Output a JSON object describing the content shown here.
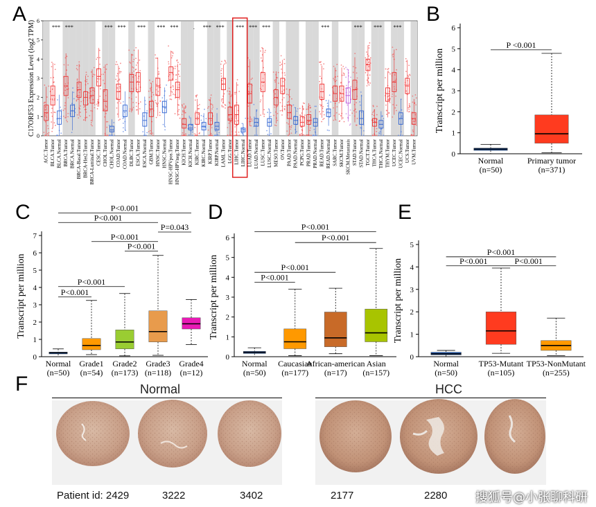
{
  "panel_letters": [
    "A",
    "B",
    "C",
    "D",
    "E",
    "F"
  ],
  "chart_data": [
    {
      "id": "A",
      "type": "box",
      "ylabel": "C17ORF53 Expression Level (log2 TPM)",
      "ylim": [
        0,
        6
      ],
      "yticks": [
        0,
        1,
        2,
        3,
        4,
        5,
        6
      ],
      "highlight": "LIHC",
      "categories": [
        {
          "name": "ACC.Tumor",
          "kind": "tumor",
          "med": 1.2,
          "q1": 0.8,
          "q3": 1.6,
          "sig": ""
        },
        {
          "name": "BLCA.Tumor",
          "kind": "tumor",
          "med": 2.1,
          "q1": 1.6,
          "q3": 2.6,
          "sig": "***"
        },
        {
          "name": "BLCA.Normal",
          "kind": "normal",
          "med": 0.9,
          "q1": 0.6,
          "q3": 1.3,
          "sig": ""
        },
        {
          "name": "BRCA.Tumor",
          "kind": "tumor",
          "med": 2.6,
          "q1": 2.1,
          "q3": 3.1,
          "sig": "***"
        },
        {
          "name": "BRCA.Normal",
          "kind": "normal",
          "med": 1.3,
          "q1": 1.0,
          "q3": 1.6,
          "sig": ""
        },
        {
          "name": "BRCA-Basal.Tumor",
          "kind": "tumor",
          "med": 2.4,
          "q1": 2.0,
          "q3": 2.8,
          "sig": ""
        },
        {
          "name": "BRCA-Her2.Tumor",
          "kind": "tumor",
          "med": 2.0,
          "q1": 1.6,
          "q3": 2.3,
          "sig": ""
        },
        {
          "name": "BRCA-Luminal.Tumor",
          "kind": "tumor",
          "med": 2.1,
          "q1": 1.7,
          "q3": 2.5,
          "sig": ""
        },
        {
          "name": "CESC.Tumor",
          "kind": "tumor",
          "med": 3.1,
          "q1": 2.6,
          "q3": 3.5,
          "sig": ""
        },
        {
          "name": "CHOL.Tumor",
          "kind": "tumor",
          "med": 1.8,
          "q1": 1.3,
          "q3": 2.4,
          "sig": "***"
        },
        {
          "name": "CHOL.Normal",
          "kind": "normal",
          "med": 0.3,
          "q1": 0.2,
          "q3": 0.5,
          "sig": ""
        },
        {
          "name": "COAD.Tumor",
          "kind": "tumor",
          "med": 2.3,
          "q1": 1.9,
          "q3": 2.7,
          "sig": "***"
        },
        {
          "name": "COAD.Normal",
          "kind": "normal",
          "med": 1.3,
          "q1": 1.0,
          "q3": 1.6,
          "sig": ""
        },
        {
          "name": "DLBC.Tumor",
          "kind": "tumor",
          "med": 2.8,
          "q1": 2.3,
          "q3": 3.2,
          "sig": ""
        },
        {
          "name": "ESCA.Tumor",
          "kind": "tumor",
          "med": 2.8,
          "q1": 2.3,
          "q3": 3.3,
          "sig": "***"
        },
        {
          "name": "ESCA.Normal",
          "kind": "normal",
          "med": 0.8,
          "q1": 0.5,
          "q3": 1.2,
          "sig": ""
        },
        {
          "name": "GBM.Tumor",
          "kind": "tumor",
          "med": 1.4,
          "q1": 1.0,
          "q3": 1.8,
          "sig": ""
        },
        {
          "name": "HNSC.Tumor",
          "kind": "tumor",
          "med": 2.6,
          "q1": 2.1,
          "q3": 3.0,
          "sig": "***"
        },
        {
          "name": "HNSC.Normal",
          "kind": "normal",
          "med": 1.5,
          "q1": 1.2,
          "q3": 1.8,
          "sig": ""
        },
        {
          "name": "HNSC-HPVpos.Tumor",
          "kind": "tumor",
          "med": 3.3,
          "q1": 2.9,
          "q3": 3.6,
          "sig": "***"
        },
        {
          "name": "HNSC-HPVneg.Tumor",
          "kind": "tumor",
          "med": 2.4,
          "q1": 2.0,
          "q3": 2.8,
          "sig": ""
        },
        {
          "name": "KICH.Tumor",
          "kind": "tumor",
          "med": 0.6,
          "q1": 0.4,
          "q3": 0.9,
          "sig": ""
        },
        {
          "name": "KICH.Normal",
          "kind": "normal",
          "med": 0.4,
          "q1": 0.3,
          "q3": 0.6,
          "sig": "."
        },
        {
          "name": "KIRC.Tumor",
          "kind": "tumor",
          "med": 0.9,
          "q1": 0.6,
          "q3": 1.2,
          "sig": ""
        },
        {
          "name": "KIRC.Normal",
          "kind": "normal",
          "med": 0.5,
          "q1": 0.3,
          "q3": 0.7,
          "sig": "***"
        },
        {
          "name": "KIRP.Tumor",
          "kind": "tumor",
          "med": 0.9,
          "q1": 0.6,
          "q3": 1.2,
          "sig": ""
        },
        {
          "name": "KIRP.Normal",
          "kind": "normal",
          "med": 0.5,
          "q1": 0.3,
          "q3": 0.7,
          "sig": "***"
        },
        {
          "name": "LAML.Tumor",
          "kind": "tumor",
          "med": 2.7,
          "q1": 2.4,
          "q3": 3.0,
          "sig": ""
        },
        {
          "name": "LGG.Tumor",
          "kind": "tumor",
          "med": 1.1,
          "q1": 0.8,
          "q3": 1.5,
          "sig": ""
        },
        {
          "name": "LIHC.Tumor",
          "kind": "tumor",
          "med": 1.1,
          "q1": 0.6,
          "q3": 1.6,
          "sig": "***"
        },
        {
          "name": "LIHC.Normal",
          "kind": "normal",
          "med": 0.3,
          "q1": 0.2,
          "q3": 0.4,
          "sig": ""
        },
        {
          "name": "LUAD.Tumor",
          "kind": "tumor",
          "med": 2.2,
          "q1": 1.7,
          "q3": 2.7,
          "sig": "***"
        },
        {
          "name": "LUAD.Normal",
          "kind": "normal",
          "med": 0.7,
          "q1": 0.5,
          "q3": 0.9,
          "sig": ""
        },
        {
          "name": "LUSC.Tumor",
          "kind": "tumor",
          "med": 2.8,
          "q1": 2.3,
          "q3": 3.3,
          "sig": "***"
        },
        {
          "name": "LUSC.Normal",
          "kind": "normal",
          "med": 0.7,
          "q1": 0.5,
          "q3": 0.9,
          "sig": ""
        },
        {
          "name": "MESO.Tumor",
          "kind": "tumor",
          "med": 2.0,
          "q1": 1.6,
          "q3": 2.4,
          "sig": ""
        },
        {
          "name": "OV.Tumor",
          "kind": "tumor",
          "med": 2.6,
          "q1": 2.2,
          "q3": 3.0,
          "sig": ""
        },
        {
          "name": "PAAD.Tumor",
          "kind": "tumor",
          "med": 1.2,
          "q1": 0.9,
          "q3": 1.6,
          "sig": ""
        },
        {
          "name": "PAAD.Normal",
          "kind": "normal",
          "med": 0.8,
          "q1": 0.6,
          "q3": 1.0,
          "sig": ""
        },
        {
          "name": "PCPG.Tumor",
          "kind": "tumor",
          "med": 0.7,
          "q1": 0.5,
          "q3": 1.0,
          "sig": ""
        },
        {
          "name": "PRAD.Tumor",
          "kind": "tumor",
          "med": 0.8,
          "q1": 0.6,
          "q3": 1.1,
          "sig": ""
        },
        {
          "name": "PRAD.Normal",
          "kind": "normal",
          "med": 0.7,
          "q1": 0.5,
          "q3": 0.9,
          "sig": ""
        },
        {
          "name": "READ.Tumor",
          "kind": "tumor",
          "med": 2.3,
          "q1": 1.9,
          "q3": 2.7,
          "sig": "***"
        },
        {
          "name": "READ.Normal",
          "kind": "normal",
          "med": 1.2,
          "q1": 1.0,
          "q3": 1.4,
          "sig": ""
        },
        {
          "name": "SARC.Tumor",
          "kind": "tumor",
          "med": 2.2,
          "q1": 1.8,
          "q3": 2.6,
          "sig": ""
        },
        {
          "name": "SKCM.Tumor",
          "kind": "tumor",
          "med": 2.2,
          "q1": 1.8,
          "q3": 2.6,
          "sig": ""
        },
        {
          "name": "SKCM.Metastasis",
          "kind": "metastasis",
          "med": 2.1,
          "q1": 1.7,
          "q3": 2.5,
          "sig": ""
        },
        {
          "name": "STAD.Tumor",
          "kind": "tumor",
          "med": 2.4,
          "q1": 1.9,
          "q3": 2.9,
          "sig": "***"
        },
        {
          "name": "STAD.Normal",
          "kind": "normal",
          "med": 0.9,
          "q1": 0.6,
          "q3": 1.3,
          "sig": ""
        },
        {
          "name": "TGCT.Tumor",
          "kind": "tumor",
          "med": 3.7,
          "q1": 3.4,
          "q3": 4.0,
          "sig": ""
        },
        {
          "name": "THCA.Tumor",
          "kind": "tumor",
          "med": 0.7,
          "q1": 0.5,
          "q3": 0.9,
          "sig": "***"
        },
        {
          "name": "THCA.Normal",
          "kind": "normal",
          "med": 0.6,
          "q1": 0.4,
          "q3": 0.8,
          "sig": ""
        },
        {
          "name": "THYM.Tumor",
          "kind": "tumor",
          "med": 2.2,
          "q1": 1.8,
          "q3": 2.5,
          "sig": ""
        },
        {
          "name": "UCEC.Tumor",
          "kind": "tumor",
          "med": 2.8,
          "q1": 2.3,
          "q3": 3.3,
          "sig": "***"
        },
        {
          "name": "UCEC.Normal",
          "kind": "normal",
          "med": 0.9,
          "q1": 0.6,
          "q3": 1.2,
          "sig": ""
        },
        {
          "name": "UCS.Tumor",
          "kind": "tumor",
          "med": 2.6,
          "q1": 2.2,
          "q3": 3.0,
          "sig": ""
        },
        {
          "name": "UVM.Tumor",
          "kind": "tumor",
          "med": 0.9,
          "q1": 0.6,
          "q3": 1.2,
          "sig": ""
        }
      ]
    },
    {
      "id": "B",
      "type": "box",
      "ylabel": "Transcript per million",
      "ylim": [
        0,
        6
      ],
      "yticks": [
        0,
        1,
        2,
        3,
        4,
        5,
        6
      ],
      "groups": [
        {
          "label": "Normal",
          "n": "(n=50)",
          "color": "#1f5fbf",
          "min": 0.0,
          "q1": 0.16,
          "med": 0.22,
          "q3": 0.27,
          "max": 0.45
        },
        {
          "label": "Primary tumor",
          "n": "(n=371)",
          "color": "#ff3b1f",
          "min": 0.05,
          "q1": 0.5,
          "med": 0.95,
          "q3": 1.85,
          "max": 4.78
        }
      ],
      "comparisons": [
        {
          "a": 0,
          "b": 1,
          "text": "P <0.001",
          "y": 4.95
        }
      ]
    },
    {
      "id": "C",
      "type": "box",
      "ylabel": "Transcript per million",
      "ylim": [
        0,
        7
      ],
      "yticks": [
        0,
        1,
        2,
        3,
        4,
        5,
        6,
        7
      ],
      "groups": [
        {
          "label": "Normal",
          "n": "(n=50)",
          "color": "#1f5fbf",
          "min": 0.0,
          "q1": 0.16,
          "med": 0.22,
          "q3": 0.27,
          "max": 0.45
        },
        {
          "label": "Grade1",
          "n": "(n=54)",
          "color": "#ff9900",
          "min": 0.12,
          "q1": 0.4,
          "med": 0.65,
          "q3": 1.05,
          "max": 3.25
        },
        {
          "label": "Grade2",
          "n": "(n=173)",
          "color": "#9acd32",
          "min": 0.05,
          "q1": 0.45,
          "med": 0.85,
          "q3": 1.55,
          "max": 3.65
        },
        {
          "label": "Grade3",
          "n": "(n=118)",
          "color": "#e89b4c",
          "min": 0.08,
          "q1": 0.85,
          "med": 1.45,
          "q3": 2.65,
          "max": 5.85
        },
        {
          "label": "Grade4",
          "n": "(n=12)",
          "color": "#e81ab5",
          "min": 0.7,
          "q1": 1.6,
          "med": 1.9,
          "q3": 2.25,
          "max": 3.3
        }
      ],
      "comparisons": [
        {
          "a": 0,
          "b": 1,
          "text": "P<0.001",
          "y": 3.45
        },
        {
          "a": 0,
          "b": 2,
          "text": "P<0.001",
          "y": 4.05
        },
        {
          "a": 2,
          "b": 3,
          "text": "P<0.001",
          "y": 6.1
        },
        {
          "a": 1,
          "b": 3,
          "text": "P<0.001",
          "y": 6.65
        },
        {
          "a": 3,
          "b": 4,
          "text": "P=0.043",
          "y": 7.2
        },
        {
          "a": 0,
          "b": 3,
          "text": "P<0.001",
          "y": 7.75
        },
        {
          "a": 0,
          "b": 4,
          "text": "P<0.001",
          "y": 8.3
        }
      ]
    },
    {
      "id": "D",
      "type": "box",
      "ylabel": "Transcript per million",
      "ylim": [
        0,
        6
      ],
      "yticks": [
        0,
        1,
        2,
        3,
        4,
        5,
        6
      ],
      "groups": [
        {
          "label": "Normal",
          "n": "(n=50)",
          "color": "#1f5fbf",
          "min": 0.0,
          "q1": 0.16,
          "med": 0.22,
          "q3": 0.27,
          "max": 0.45
        },
        {
          "label": "Caucasian",
          "n": "(n=177)",
          "color": "#ff9900",
          "min": 0.05,
          "q1": 0.4,
          "med": 0.75,
          "q3": 1.4,
          "max": 3.4
        },
        {
          "label": "African-american",
          "n": "(n=17)",
          "color": "#c86a28",
          "min": 0.15,
          "q1": 0.5,
          "med": 0.95,
          "q3": 2.25,
          "max": 3.45
        },
        {
          "label": "Asian",
          "n": "(n=157)",
          "color": "#a8c400",
          "min": 0.05,
          "q1": 0.75,
          "med": 1.2,
          "q3": 2.4,
          "max": 5.45
        }
      ],
      "comparisons": [
        {
          "a": 0,
          "b": 1,
          "text": "P<0.001",
          "y": 3.75
        },
        {
          "a": 0,
          "b": 2,
          "text": "P<0.001",
          "y": 4.25
        },
        {
          "a": 1,
          "b": 3,
          "text": "P<0.001",
          "y": 5.75
        },
        {
          "a": 0,
          "b": 3,
          "text": "P<0.001",
          "y": 6.3
        }
      ]
    },
    {
      "id": "E",
      "type": "box",
      "ylabel": "Transcript per million",
      "ylim": [
        0,
        5
      ],
      "yticks": [
        0,
        1,
        2,
        3,
        4,
        5
      ],
      "groups": [
        {
          "label": "Normal",
          "n": "(n=50)",
          "color": "#1f5fbf",
          "min": 0.0,
          "q1": 0.08,
          "med": 0.13,
          "q3": 0.2,
          "max": 0.28
        },
        {
          "label": "TP53-Mutant",
          "n": "(n=105)",
          "color": "#ff3b1f",
          "min": 0.15,
          "q1": 0.55,
          "med": 1.15,
          "q3": 2.0,
          "max": 3.95
        },
        {
          "label": "TP53-NonMutant",
          "n": "(n=255)",
          "color": "#ff9900",
          "min": 0.05,
          "q1": 0.28,
          "med": 0.5,
          "q3": 0.72,
          "max": 1.72
        }
      ],
      "comparisons": [
        {
          "a": 0,
          "b": 1,
          "text": "P<0.001",
          "y": 4.05
        },
        {
          "a": 1,
          "b": 2,
          "text": "P<0.001",
          "y": 4.05
        },
        {
          "a": 0,
          "b": 2,
          "text": "P<0.001",
          "y": 4.45
        }
      ]
    }
  ],
  "ihc": {
    "normal_title": "Normal",
    "hcc_title": "HCC",
    "patient_prefix": "Patient id: 2429",
    "ids": [
      "3222",
      "3402",
      "2177",
      "2280"
    ]
  },
  "watermark": "搜狐号@小张聊科研"
}
